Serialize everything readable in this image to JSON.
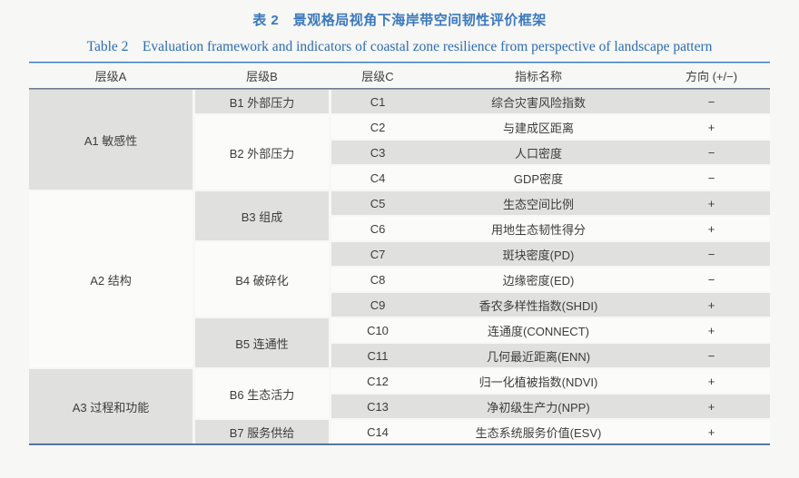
{
  "title_cn": "表 2　景观格局视角下海岸带空间韧性评价框架",
  "title_en": "Table 2　Evaluation framework and indicators of coastal zone resilience from perspective of landscape pattern",
  "headers": [
    "层级A",
    "层级B",
    "层级C",
    "指标名称",
    "方向 (+/−)"
  ],
  "levelA": [
    {
      "label": "A1 敏感性",
      "rows": 4
    },
    {
      "label": "A2 结构",
      "rows": 7
    },
    {
      "label": "A3 过程和功能",
      "rows": 3
    }
  ],
  "levelB": [
    {
      "label": "B1 外部压力",
      "rows": 1
    },
    {
      "label": "B2 外部压力",
      "rows": 3
    },
    {
      "label": "B3 组成",
      "rows": 2
    },
    {
      "label": "B4 破碎化",
      "rows": 3
    },
    {
      "label": "B5 连通性",
      "rows": 2
    },
    {
      "label": "B6 生态活力",
      "rows": 2
    },
    {
      "label": "B7 服务供给",
      "rows": 1
    }
  ],
  "rows": [
    {
      "c": "C1",
      "indicator": "综合灾害风险指数",
      "direction": "−"
    },
    {
      "c": "C2",
      "indicator": "与建成区距离",
      "direction": "+"
    },
    {
      "c": "C3",
      "indicator": "人口密度",
      "direction": "−"
    },
    {
      "c": "C4",
      "indicator": "GDP密度",
      "direction": "−"
    },
    {
      "c": "C5",
      "indicator": "生态空间比例",
      "direction": "+"
    },
    {
      "c": "C6",
      "indicator": "用地生态韧性得分",
      "direction": "+"
    },
    {
      "c": "C7",
      "indicator": "斑块密度(PD)",
      "direction": "−"
    },
    {
      "c": "C8",
      "indicator": "边缘密度(ED)",
      "direction": "−"
    },
    {
      "c": "C9",
      "indicator": "香农多样性指数(SHDI)",
      "direction": "+"
    },
    {
      "c": "C10",
      "indicator": "连通度(CONNECT)",
      "direction": "+"
    },
    {
      "c": "C11",
      "indicator": "几何最近距离(ENN)",
      "direction": "−"
    },
    {
      "c": "C12",
      "indicator": "归一化植被指数(NDVI)",
      "direction": "+"
    },
    {
      "c": "C13",
      "indicator": "净初级生产力(NPP)",
      "direction": "+"
    },
    {
      "c": "C14",
      "indicator": "生态系统服务价值(ESV)",
      "direction": "+"
    }
  ],
  "colors": {
    "page_bg": "#f7f7f5",
    "cell_gray": "#e0e0df",
    "cell_white": "#fbfbfa",
    "title_blue": "#3a78bd",
    "title_en_blue": "#2c6cb5",
    "rule_top": "#2e74b6"
  }
}
